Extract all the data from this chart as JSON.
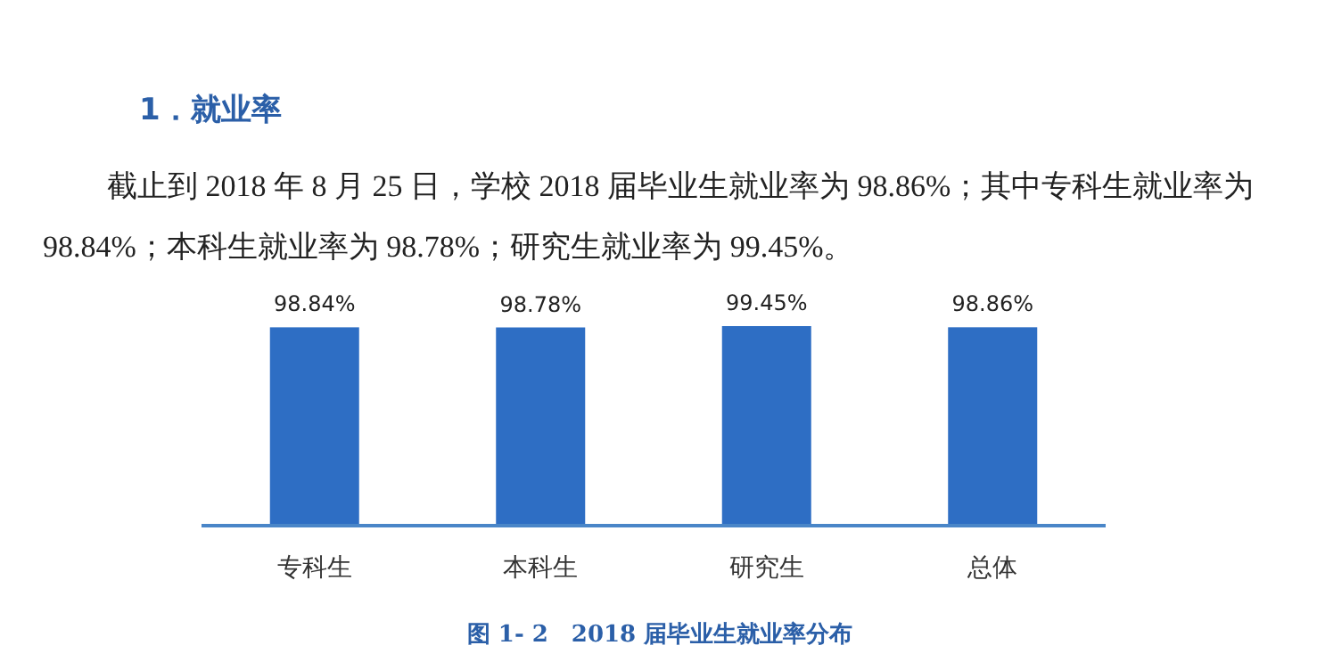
{
  "chart_data": {
    "type": "bar",
    "title": "1．就业率",
    "subtitle": "截止到 2018 年 8 月 25 日，学校 2018 届毕业生就业率为 98.86%；其中专科生就业率为 98.84%；本科生就业率为 98.78%；研究生就业率为 99.45%。",
    "categories": [
      "专科生",
      "本科生",
      "研究生",
      "总体"
    ],
    "values": [
      98.84,
      98.78,
      99.45,
      98.86
    ],
    "value_labels": [
      "98.84%",
      "98.78%",
      "99.45%",
      "98.86%"
    ],
    "color": "#2e6ec4",
    "annotations": [
      "图 1- 2　2018 届毕业生就业率分布"
    ]
  }
}
